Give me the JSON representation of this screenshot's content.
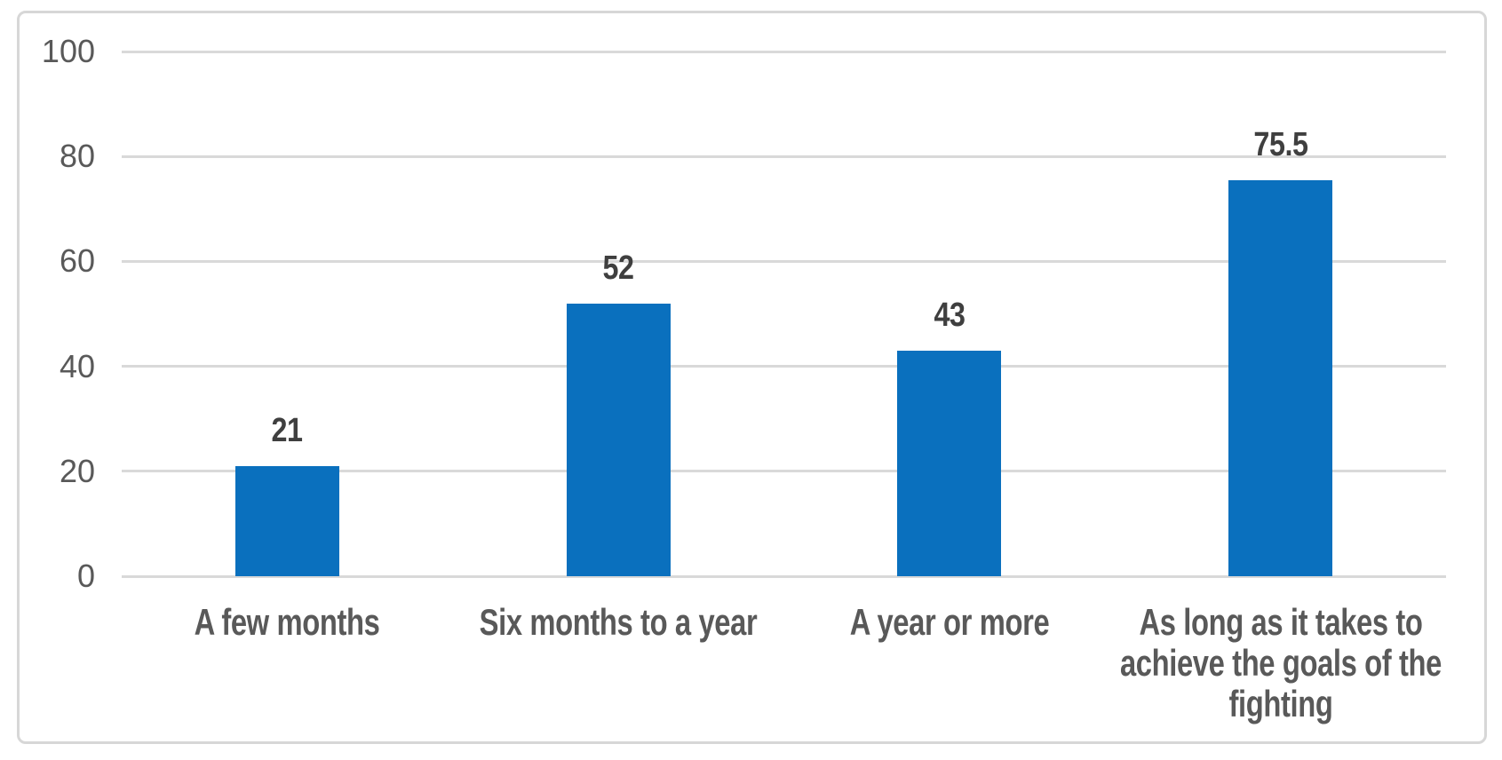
{
  "chart_data": {
    "type": "bar",
    "title": "",
    "xlabel": "",
    "ylabel": "",
    "categories": [
      "A few months",
      "Six months to a year",
      "A year or more",
      "As long as it takes to achieve the goals of the fighting"
    ],
    "category_display_lines": [
      [
        "A few months"
      ],
      [
        "Six months to a year"
      ],
      [
        "A year or more"
      ],
      [
        "As long as it takes to",
        "achieve the goals of the",
        "fighting"
      ]
    ],
    "values": [
      21,
      52,
      43,
      75.5
    ],
    "data_labels": [
      "21",
      "52",
      "43",
      "75.5"
    ],
    "yticks": [
      0,
      20,
      40,
      60,
      80,
      100
    ],
    "ylim": [
      0,
      100
    ],
    "grid": true,
    "legend": false,
    "colors": {
      "bar_fill": "#0A70BE",
      "gridline": "#D9D9D9",
      "frame_border": "#D7D7D7",
      "tick_label": "#595959",
      "category_label": "#595959",
      "data_label": "#3F3F3F",
      "background": "#FFFFFF"
    }
  }
}
